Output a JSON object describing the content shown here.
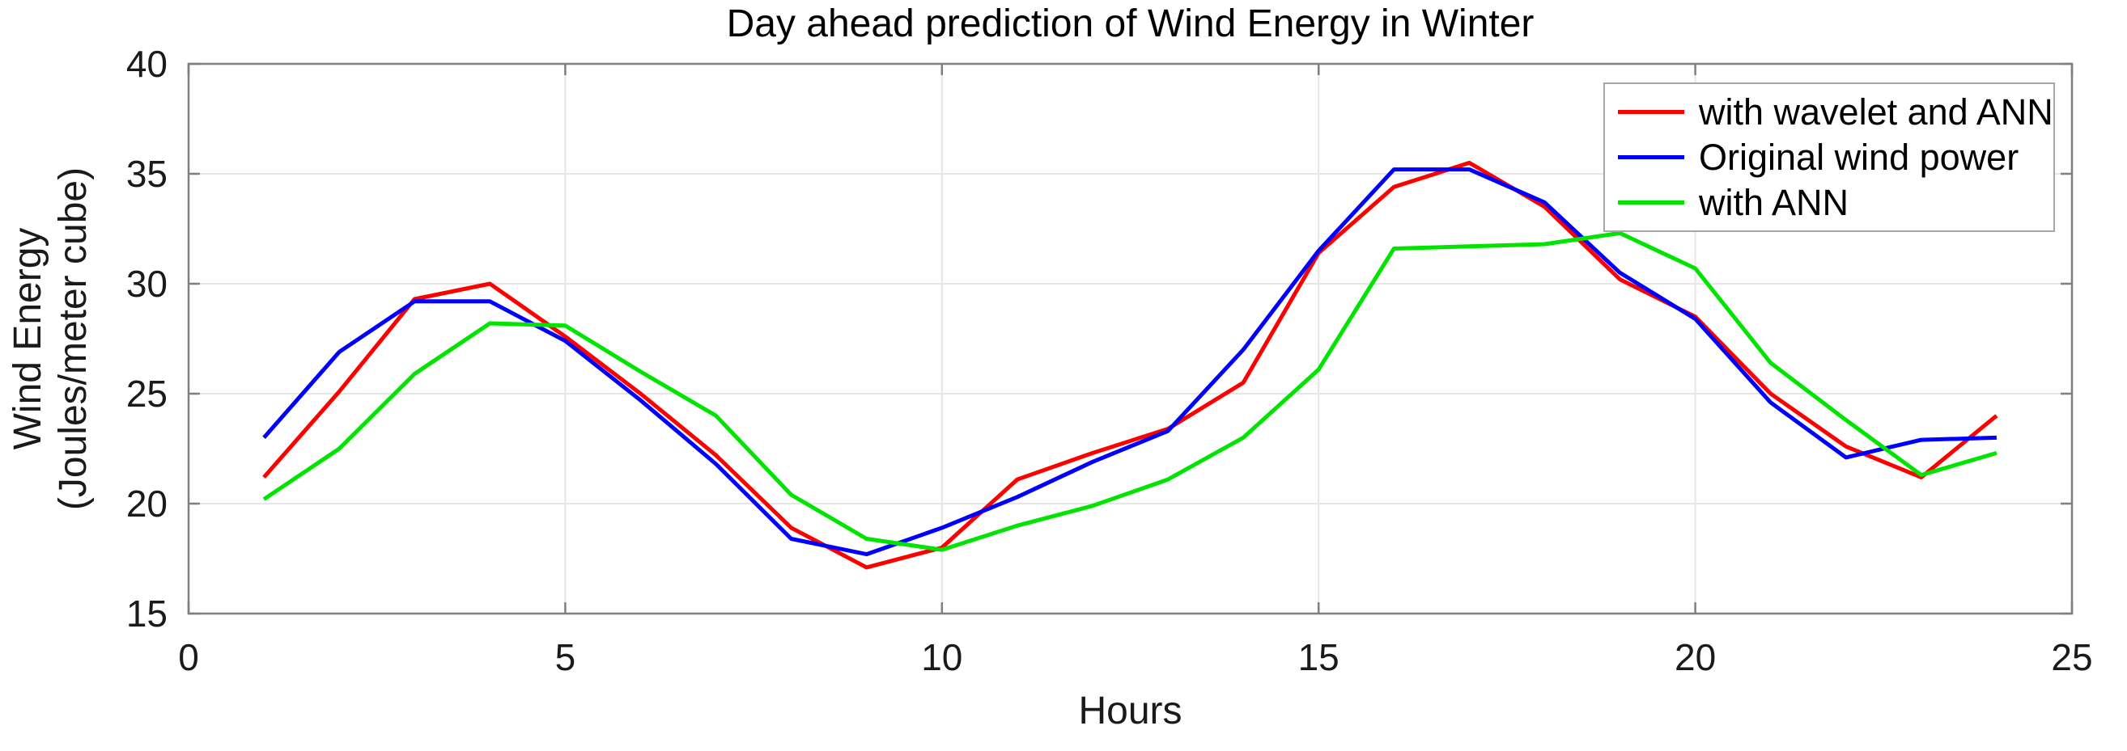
{
  "chart_data": {
    "type": "line",
    "title": "Day ahead prediction of Wind Energy in Winter",
    "xlabel": "Hours",
    "ylabel_line1": "Wind Energy",
    "ylabel_line2": "(Joules/meter cube)",
    "xlim": [
      0,
      25
    ],
    "ylim": [
      15,
      40
    ],
    "xticks": [
      0,
      5,
      10,
      15,
      20,
      25
    ],
    "yticks": [
      15,
      20,
      25,
      30,
      35,
      40
    ],
    "grid": true,
    "legend_position": "top-right",
    "x": [
      1,
      2,
      3,
      4,
      5,
      6,
      7,
      8,
      9,
      10,
      11,
      12,
      13,
      14,
      15,
      16,
      17,
      18,
      19,
      20,
      21,
      22,
      23,
      24
    ],
    "series": [
      {
        "name": "with wavelet and ANN",
        "color": "#ff0000",
        "values": [
          21.2,
          25.1,
          29.3,
          30.0,
          27.6,
          25.0,
          22.2,
          18.9,
          17.1,
          18.0,
          21.1,
          22.3,
          23.4,
          25.5,
          31.4,
          34.4,
          35.5,
          33.5,
          30.2,
          28.5,
          25.0,
          22.6,
          21.2,
          24.0
        ]
      },
      {
        "name": "Original wind power",
        "color": "#0000ff",
        "values": [
          23.0,
          26.9,
          29.2,
          29.2,
          27.4,
          24.7,
          21.8,
          18.4,
          17.7,
          18.9,
          20.3,
          21.9,
          23.3,
          27.0,
          31.5,
          35.2,
          35.2,
          33.7,
          30.5,
          28.4,
          24.6,
          22.1,
          22.9,
          23.0
        ]
      },
      {
        "name": "with ANN",
        "color": "#00e400",
        "values": [
          20.2,
          22.5,
          25.9,
          28.2,
          28.1,
          26.0,
          24.0,
          20.4,
          18.4,
          17.9,
          19.0,
          19.9,
          21.1,
          23.0,
          26.1,
          31.6,
          31.7,
          31.8,
          32.3,
          30.7,
          26.4,
          23.8,
          21.3,
          22.3
        ]
      }
    ]
  }
}
